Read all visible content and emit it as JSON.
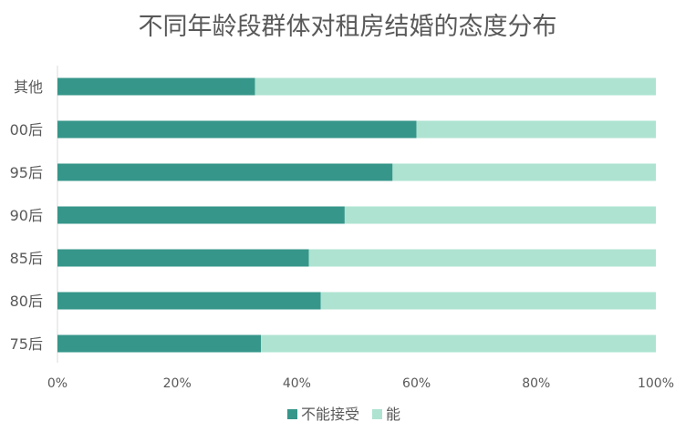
{
  "chart_data": {
    "type": "bar",
    "orientation": "horizontal",
    "stacked": true,
    "percent_stacked": true,
    "title": "不同年龄段群体对租房结婚的态度分布",
    "xlabel": "",
    "ylabel": "",
    "categories": [
      "其他",
      "00后",
      "95后",
      "90后",
      "85后",
      "80后",
      "75后"
    ],
    "series": [
      {
        "name": "不能接受",
        "color": "#36968a",
        "values": [
          33,
          60,
          56,
          48,
          42,
          44,
          34
        ]
      },
      {
        "name": "能",
        "color": "#aee3d1",
        "values": [
          67,
          40,
          44,
          52,
          58,
          56,
          66
        ]
      }
    ],
    "xlim": [
      0,
      100
    ],
    "x_ticks": [
      "0%",
      "20%",
      "40%",
      "60%",
      "80%",
      "100%"
    ],
    "grid": false,
    "legend_position": "bottom"
  }
}
